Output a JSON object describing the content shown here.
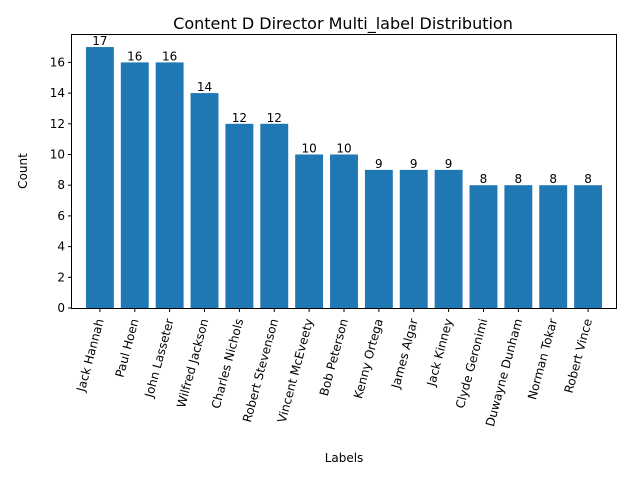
{
  "chart_data": {
    "type": "bar",
    "title": "Content D Director Multi_label Distribution",
    "xlabel": "Labels",
    "ylabel": "Count",
    "categories": [
      "Jack Hannah",
      "Paul Hoen",
      "John Lasseter",
      "Wilfred Jackson",
      "Charles Nichols",
      "Robert Stevenson",
      "Vincent McEveety",
      "Bob Peterson",
      "Kenny Ortega",
      "James Algar",
      "Jack Kinney",
      "Clyde Geronimi",
      "Duwayne Dunham",
      "Norman Tokar",
      "Robert Vince"
    ],
    "values": [
      17,
      16,
      16,
      14,
      12,
      12,
      10,
      10,
      9,
      9,
      9,
      8,
      8,
      8,
      8
    ],
    "yticks": [
      0,
      2,
      4,
      6,
      8,
      10,
      12,
      14,
      16
    ],
    "ylim": [
      0,
      17.85
    ],
    "bar_color": "#1f77b4",
    "grid": false,
    "legend": "none"
  }
}
